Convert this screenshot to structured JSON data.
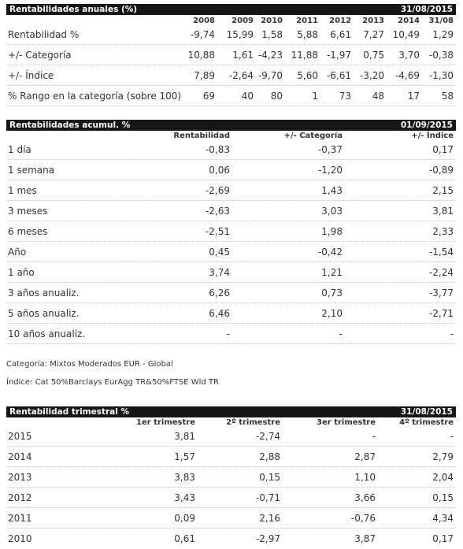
{
  "anuales": {
    "title": "Rentabilidades anuales (%)",
    "date": "31/08/2015",
    "years": [
      "2008",
      "2009",
      "2010",
      "2011",
      "2012",
      "2013",
      "2014",
      "31/08"
    ],
    "rows": [
      {
        "label": "Rentabilidad %",
        "values": [
          "-9,74",
          "15,99",
          "1,58",
          "5,88",
          "6,61",
          "7,27",
          "10,49",
          "1,29"
        ]
      },
      {
        "label": "+/- Categoría",
        "values": [
          "10,88",
          "1,61",
          "-4,23",
          "11,88",
          "-1,97",
          "0,75",
          "3,70",
          "-0,38"
        ]
      },
      {
        "label": "+/- Índice",
        "values": [
          "7,89",
          "-2,64",
          "-9,70",
          "5,60",
          "-6,61",
          "-3,20",
          "-4,69",
          "-1,30"
        ]
      },
      {
        "label": "% Rango en la categoría (sobre 100)",
        "values": [
          "69",
          "40",
          "80",
          "1",
          "73",
          "48",
          "17",
          "58"
        ]
      }
    ]
  },
  "acumul": {
    "title": "Rentabilidades acumul. %",
    "date": "01/09/2015",
    "headers": [
      "Rentabilidad",
      "+/- Categoría",
      "+/- Índice"
    ],
    "rows": [
      {
        "label": "1 día",
        "values": [
          "-0,83",
          "-0,37",
          "0,17"
        ]
      },
      {
        "label": "1 semana",
        "values": [
          "0,06",
          "-1,20",
          "-0,89"
        ]
      },
      {
        "label": "1 mes",
        "values": [
          "-2,69",
          "1,43",
          "2,15"
        ]
      },
      {
        "label": "3 meses",
        "values": [
          "-2,63",
          "3,03",
          "3,81"
        ]
      },
      {
        "label": "6 meses",
        "values": [
          "-2,51",
          "1,98",
          "2,33"
        ]
      },
      {
        "label": "Año",
        "values": [
          "0,45",
          "-0,42",
          "-1,54"
        ]
      },
      {
        "label": "1 año",
        "values": [
          "3,74",
          "1,21",
          "-2,24"
        ]
      },
      {
        "label": "3 años anualiz.",
        "values": [
          "6,26",
          "0,73",
          "-3,77"
        ]
      },
      {
        "label": "5 años anualiz.",
        "values": [
          "6,46",
          "2,10",
          "-2,71"
        ]
      },
      {
        "label": "10 años anualiz.",
        "values": [
          "-",
          "-",
          "-"
        ]
      }
    ]
  },
  "notes": {
    "categoria": "Categoría: Mixtos Moderados EUR - Global",
    "indice": "Índice: Cat 50%Barclays EurAgg TR&50%FTSE Wld TR"
  },
  "trimestral": {
    "title": "Rentabilidad trimestral %",
    "date": "31/08/2015",
    "headers": [
      "1er trimestre",
      "2º trimestre",
      "3er trimestre",
      "4º trimestre"
    ],
    "rows": [
      {
        "label": "2015",
        "values": [
          "3,81",
          "-2,74",
          "-",
          "-"
        ]
      },
      {
        "label": "2014",
        "values": [
          "1,57",
          "2,88",
          "2,87",
          "2,79"
        ]
      },
      {
        "label": "2013",
        "values": [
          "3,83",
          "0,15",
          "1,10",
          "2,04"
        ]
      },
      {
        "label": "2012",
        "values": [
          "3,43",
          "-0,71",
          "3,66",
          "0,15"
        ]
      },
      {
        "label": "2011",
        "values": [
          "0,09",
          "2,16",
          "-0,76",
          "4,34"
        ]
      },
      {
        "label": "2010",
        "values": [
          "0,61",
          "-2,97",
          "3,87",
          "0,17"
        ]
      }
    ]
  }
}
